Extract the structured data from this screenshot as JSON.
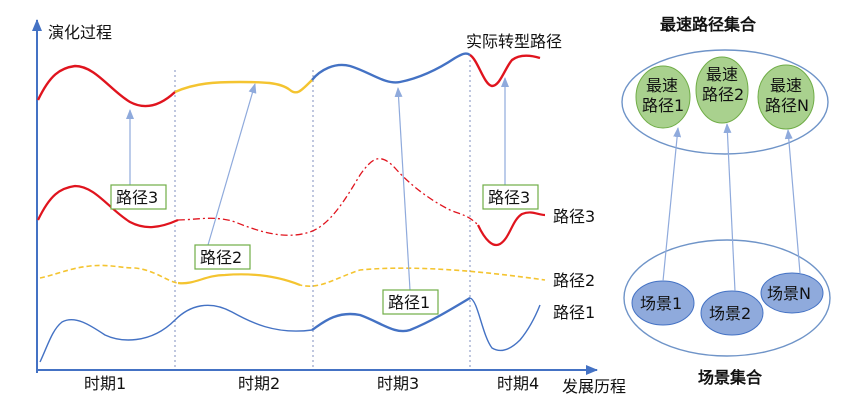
{
  "axes": {
    "y_label": "演化过程",
    "x_label": "发展历程"
  },
  "periods": [
    "时期1",
    "时期2",
    "时期3",
    "时期4"
  ],
  "top_label": "实际转型路径",
  "side_labels": {
    "path3": "路径3",
    "path2": "路径2",
    "path1": "路径1"
  },
  "boxes": {
    "box_a": "路径3",
    "box_b": "路径2",
    "box_c": "路径1",
    "box_d": "路径3"
  },
  "fastest_set": {
    "title": "最速路径集合",
    "items": [
      {
        "line1": "最速",
        "line2": "路径1"
      },
      {
        "line1": "最速",
        "line2": "路径2"
      },
      {
        "line1": "最速",
        "line2": "路径N"
      }
    ]
  },
  "scenario_set": {
    "title": "场景集合",
    "items": [
      "场景1",
      "场景2",
      "场景N"
    ]
  },
  "colors": {
    "red": "#e0141e",
    "yellow": "#f4c430",
    "blue": "#4472c4",
    "arrow": "#8faadc",
    "green_fill": "#a9d18e",
    "green_stroke": "#70ad47",
    "blue_fill": "#8faadc",
    "ellipse_stroke": "#6f94c8"
  }
}
